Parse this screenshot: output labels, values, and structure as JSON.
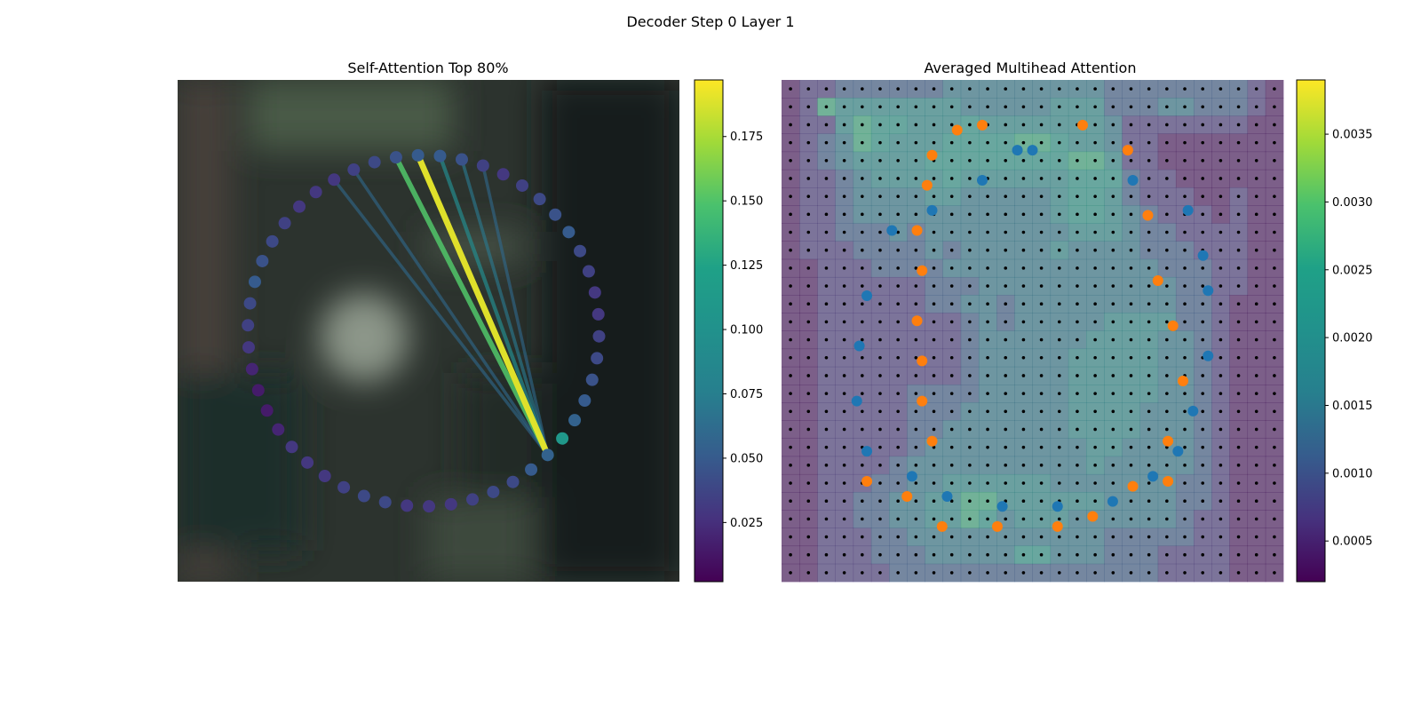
{
  "figure": {
    "suptitle": "Decoder Step 0 Layer 1"
  },
  "chart_data": [
    {
      "type": "scatter",
      "title": "Self-Attention Top 80%",
      "xlim": [
        0,
        1
      ],
      "ylim": [
        0,
        1
      ],
      "circle_center": [
        0.49,
        0.5
      ],
      "circle_radius": 0.35,
      "point_count": 50,
      "point_weights": [
        0.055,
        0.05,
        0.04,
        0.04,
        0.035,
        0.03,
        0.03,
        0.03,
        0.04,
        0.04,
        0.035,
        0.03,
        0.03,
        0.03,
        0.02,
        0.015,
        0.015,
        0.02,
        0.03,
        0.035,
        0.04,
        0.05,
        0.045,
        0.04,
        0.035,
        0.03,
        0.03,
        0.03,
        0.035,
        0.04,
        0.045,
        0.05,
        0.05,
        0.045,
        0.035,
        0.03,
        0.035,
        0.04,
        0.045,
        0.05,
        0.04,
        0.035,
        0.03,
        0.03,
        0.035,
        0.04,
        0.045,
        0.05,
        0.055,
        0.11
      ],
      "query_index": 0,
      "attention_lines": [
        {
          "to": 27,
          "weight": 0.06
        },
        {
          "to": 28,
          "weight": 0.06
        },
        {
          "to": 30,
          "weight": 0.15
        },
        {
          "to": 31,
          "weight": 0.19
        },
        {
          "to": 32,
          "weight": 0.09
        },
        {
          "to": 33,
          "weight": 0.07
        },
        {
          "to": 34,
          "weight": 0.06
        }
      ],
      "colorbar": {
        "min": 0.002,
        "max": 0.197,
        "ticks": [
          0.025,
          0.05,
          0.075,
          0.1,
          0.125,
          0.15,
          0.175
        ],
        "tick_labels": [
          "0.025",
          "0.050",
          "0.075",
          "0.100",
          "0.125",
          "0.150",
          "0.175"
        ]
      }
    },
    {
      "type": "heatmap",
      "title": "Averaged Multihead Attention",
      "grid_size": [
        28,
        28
      ],
      "xlim": [
        0,
        1
      ],
      "ylim": [
        0,
        1
      ],
      "heatmap_rows": [
        "1223333334444444443333333321",
        "1275555555444445553334433321",
        "1225766555655555554222222211",
        "1234765556666776554221111111",
        "1234555566666666775221111111",
        "1223455556555555666322111111",
        "1223444455444445665322211211",
        "1223444444444445665432221211",
        "1223334344444444555433222211",
        "1222333343444445444433322211",
        "1122233334444444444443332211",
        "1122222233344444444444332211",
        "1122222233443444444444332111",
        "1122222222343444445555332111",
        "1122222222344444455554432111",
        "1122222222344444555554432111",
        "1122222222344444555554432111",
        "1122222333344444555554432111",
        "1122222333444444555544432111",
        "1122222334444444555544432111",
        "1122222344444444455444432111",
        "1122223444444444454444432111",
        "1122233445555554444444332111",
        "1122334455775555554444332111",
        "1122334455764555444444322111",
        "1122233444444444443333322111",
        "1122233344444664443332222111",
        "1122223333333333333332222111"
      ],
      "level_values": [
        0.0003,
        0.0007,
        0.0011,
        0.0015,
        0.0019,
        0.0023,
        0.0027,
        0.0031,
        0.0035
      ],
      "series": [
        {
          "name": "",
          "color": "#1f77b4",
          "points": [
            [
              0.5,
              0.14
            ],
            [
              0.7,
              0.2
            ],
            [
              0.81,
              0.26
            ],
            [
              0.84,
              0.35
            ],
            [
              0.85,
              0.42
            ],
            [
              0.85,
              0.55
            ],
            [
              0.82,
              0.66
            ],
            [
              0.79,
              0.74
            ],
            [
              0.74,
              0.79
            ],
            [
              0.66,
              0.84
            ],
            [
              0.55,
              0.85
            ],
            [
              0.44,
              0.85
            ],
            [
              0.33,
              0.83
            ],
            [
              0.26,
              0.79
            ],
            [
              0.17,
              0.74
            ],
            [
              0.15,
              0.64
            ],
            [
              0.155,
              0.53
            ],
            [
              0.17,
              0.43
            ],
            [
              0.22,
              0.3
            ],
            [
              0.3,
              0.26
            ],
            [
              0.4,
              0.2
            ],
            [
              0.47,
              0.14
            ]
          ]
        },
        {
          "name": "",
          "color": "#ff7f0e",
          "points": [
            [
              0.4,
              0.09
            ],
            [
              0.6,
              0.09
            ],
            [
              0.69,
              0.14
            ],
            [
              0.73,
              0.27
            ],
            [
              0.75,
              0.4
            ],
            [
              0.78,
              0.49
            ],
            [
              0.8,
              0.6
            ],
            [
              0.77,
              0.72
            ],
            [
              0.77,
              0.8
            ],
            [
              0.7,
              0.81
            ],
            [
              0.62,
              0.87
            ],
            [
              0.55,
              0.89
            ],
            [
              0.43,
              0.89
            ],
            [
              0.32,
              0.89
            ],
            [
              0.25,
              0.83
            ],
            [
              0.17,
              0.8
            ],
            [
              0.3,
              0.72
            ],
            [
              0.28,
              0.64
            ],
            [
              0.28,
              0.56
            ],
            [
              0.27,
              0.48
            ],
            [
              0.28,
              0.38
            ],
            [
              0.27,
              0.3
            ],
            [
              0.29,
              0.21
            ],
            [
              0.3,
              0.15
            ],
            [
              0.35,
              0.1
            ]
          ]
        }
      ],
      "colorbar": {
        "min": 0.0002,
        "max": 0.0039,
        "ticks": [
          0.0005,
          0.001,
          0.0015,
          0.002,
          0.0025,
          0.003,
          0.0035
        ],
        "tick_labels": [
          "0.0005",
          "0.0010",
          "0.0015",
          "0.0020",
          "0.0025",
          "0.0030",
          "0.0035"
        ]
      }
    }
  ]
}
